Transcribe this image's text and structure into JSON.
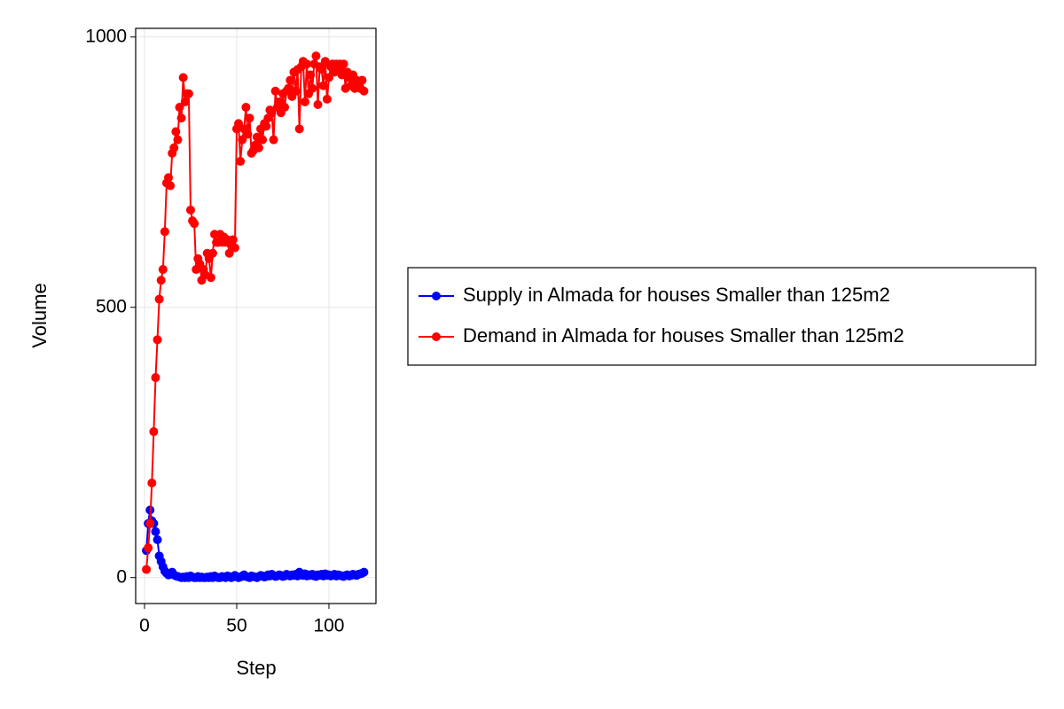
{
  "chart_data": {
    "type": "line",
    "x_label": "Step",
    "y_label": "Volume",
    "x": [
      1,
      2,
      3,
      4,
      5,
      6,
      7,
      8,
      9,
      10,
      11,
      12,
      13,
      14,
      15,
      16,
      17,
      18,
      19,
      20,
      21,
      22,
      23,
      24,
      25,
      26,
      27,
      28,
      29,
      30,
      31,
      32,
      33,
      34,
      35,
      36,
      37,
      38,
      39,
      40,
      41,
      42,
      43,
      44,
      45,
      46,
      47,
      48,
      49,
      50,
      51,
      52,
      53,
      54,
      55,
      56,
      57,
      58,
      59,
      60,
      61,
      62,
      63,
      64,
      65,
      66,
      67,
      68,
      69,
      70,
      71,
      72,
      73,
      74,
      75,
      76,
      77,
      78,
      79,
      80,
      81,
      82,
      83,
      84,
      85,
      86,
      87,
      88,
      89,
      90,
      91,
      92,
      93,
      94,
      95,
      96,
      97,
      98,
      99,
      100,
      101,
      102,
      103,
      104,
      105,
      106,
      107,
      108,
      109,
      110,
      111,
      112,
      113,
      114,
      115,
      116,
      117,
      118,
      119
    ],
    "series": [
      {
        "name": "Supply in Almada for houses Smaller than 125m2",
        "color": "#0000ff",
        "values": [
          50,
          100,
          125,
          105,
          100,
          85,
          70,
          40,
          30,
          20,
          12,
          8,
          5,
          6,
          10,
          5,
          3,
          2,
          1,
          0,
          1,
          0,
          2,
          0,
          3,
          1,
          0,
          0,
          2,
          0,
          1,
          0,
          0,
          1,
          0,
          2,
          0,
          3,
          1,
          0,
          0,
          2,
          1,
          0,
          3,
          2,
          0,
          1,
          4,
          2,
          0,
          1,
          3,
          5,
          2,
          1,
          0,
          3,
          2,
          1,
          0,
          2,
          4,
          3,
          1,
          2,
          5,
          3,
          6,
          4,
          2,
          3,
          5,
          4,
          2,
          3,
          6,
          4,
          3,
          5,
          4,
          6,
          3,
          10,
          5,
          4,
          7,
          3,
          5,
          4,
          6,
          3,
          2,
          5,
          4,
          6,
          3,
          7,
          4,
          5,
          3,
          4,
          6,
          3,
          5,
          4,
          3,
          2,
          4,
          5,
          3,
          4,
          6,
          5,
          4,
          6,
          7,
          8,
          10
        ]
      },
      {
        "name": "Demand in Almada for houses Smaller than 125m2",
        "color": "#ff0000",
        "values": [
          15,
          55,
          100,
          175,
          270,
          370,
          440,
          515,
          550,
          570,
          640,
          730,
          740,
          725,
          785,
          795,
          825,
          810,
          870,
          850,
          925,
          880,
          895,
          895,
          680,
          660,
          655,
          570,
          590,
          580,
          550,
          570,
          560,
          600,
          590,
          555,
          600,
          635,
          620,
          620,
          635,
          620,
          630,
          620,
          625,
          600,
          615,
          625,
          610,
          830,
          840,
          770,
          810,
          830,
          870,
          820,
          850,
          785,
          790,
          800,
          815,
          795,
          830,
          810,
          840,
          835,
          850,
          865,
          860,
          810,
          900,
          870,
          880,
          860,
          895,
          870,
          900,
          905,
          920,
          890,
          935,
          900,
          940,
          830,
          945,
          955,
          880,
          950,
          895,
          930,
          905,
          950,
          965,
          875,
          945,
          940,
          910,
          955,
          885,
          925,
          945,
          950,
          935,
          950,
          940,
          950,
          930,
          950,
          905,
          935,
          925,
          910,
          930,
          905,
          920,
          910,
          905,
          920,
          900
        ]
      }
    ],
    "xlim": [
      -4.8,
      125.5
    ],
    "ylim": [
      -48,
      1016
    ],
    "xticks": [
      0,
      50,
      100
    ],
    "yticks": [
      0,
      500,
      1000
    ],
    "grid": true,
    "legend": "right"
  }
}
